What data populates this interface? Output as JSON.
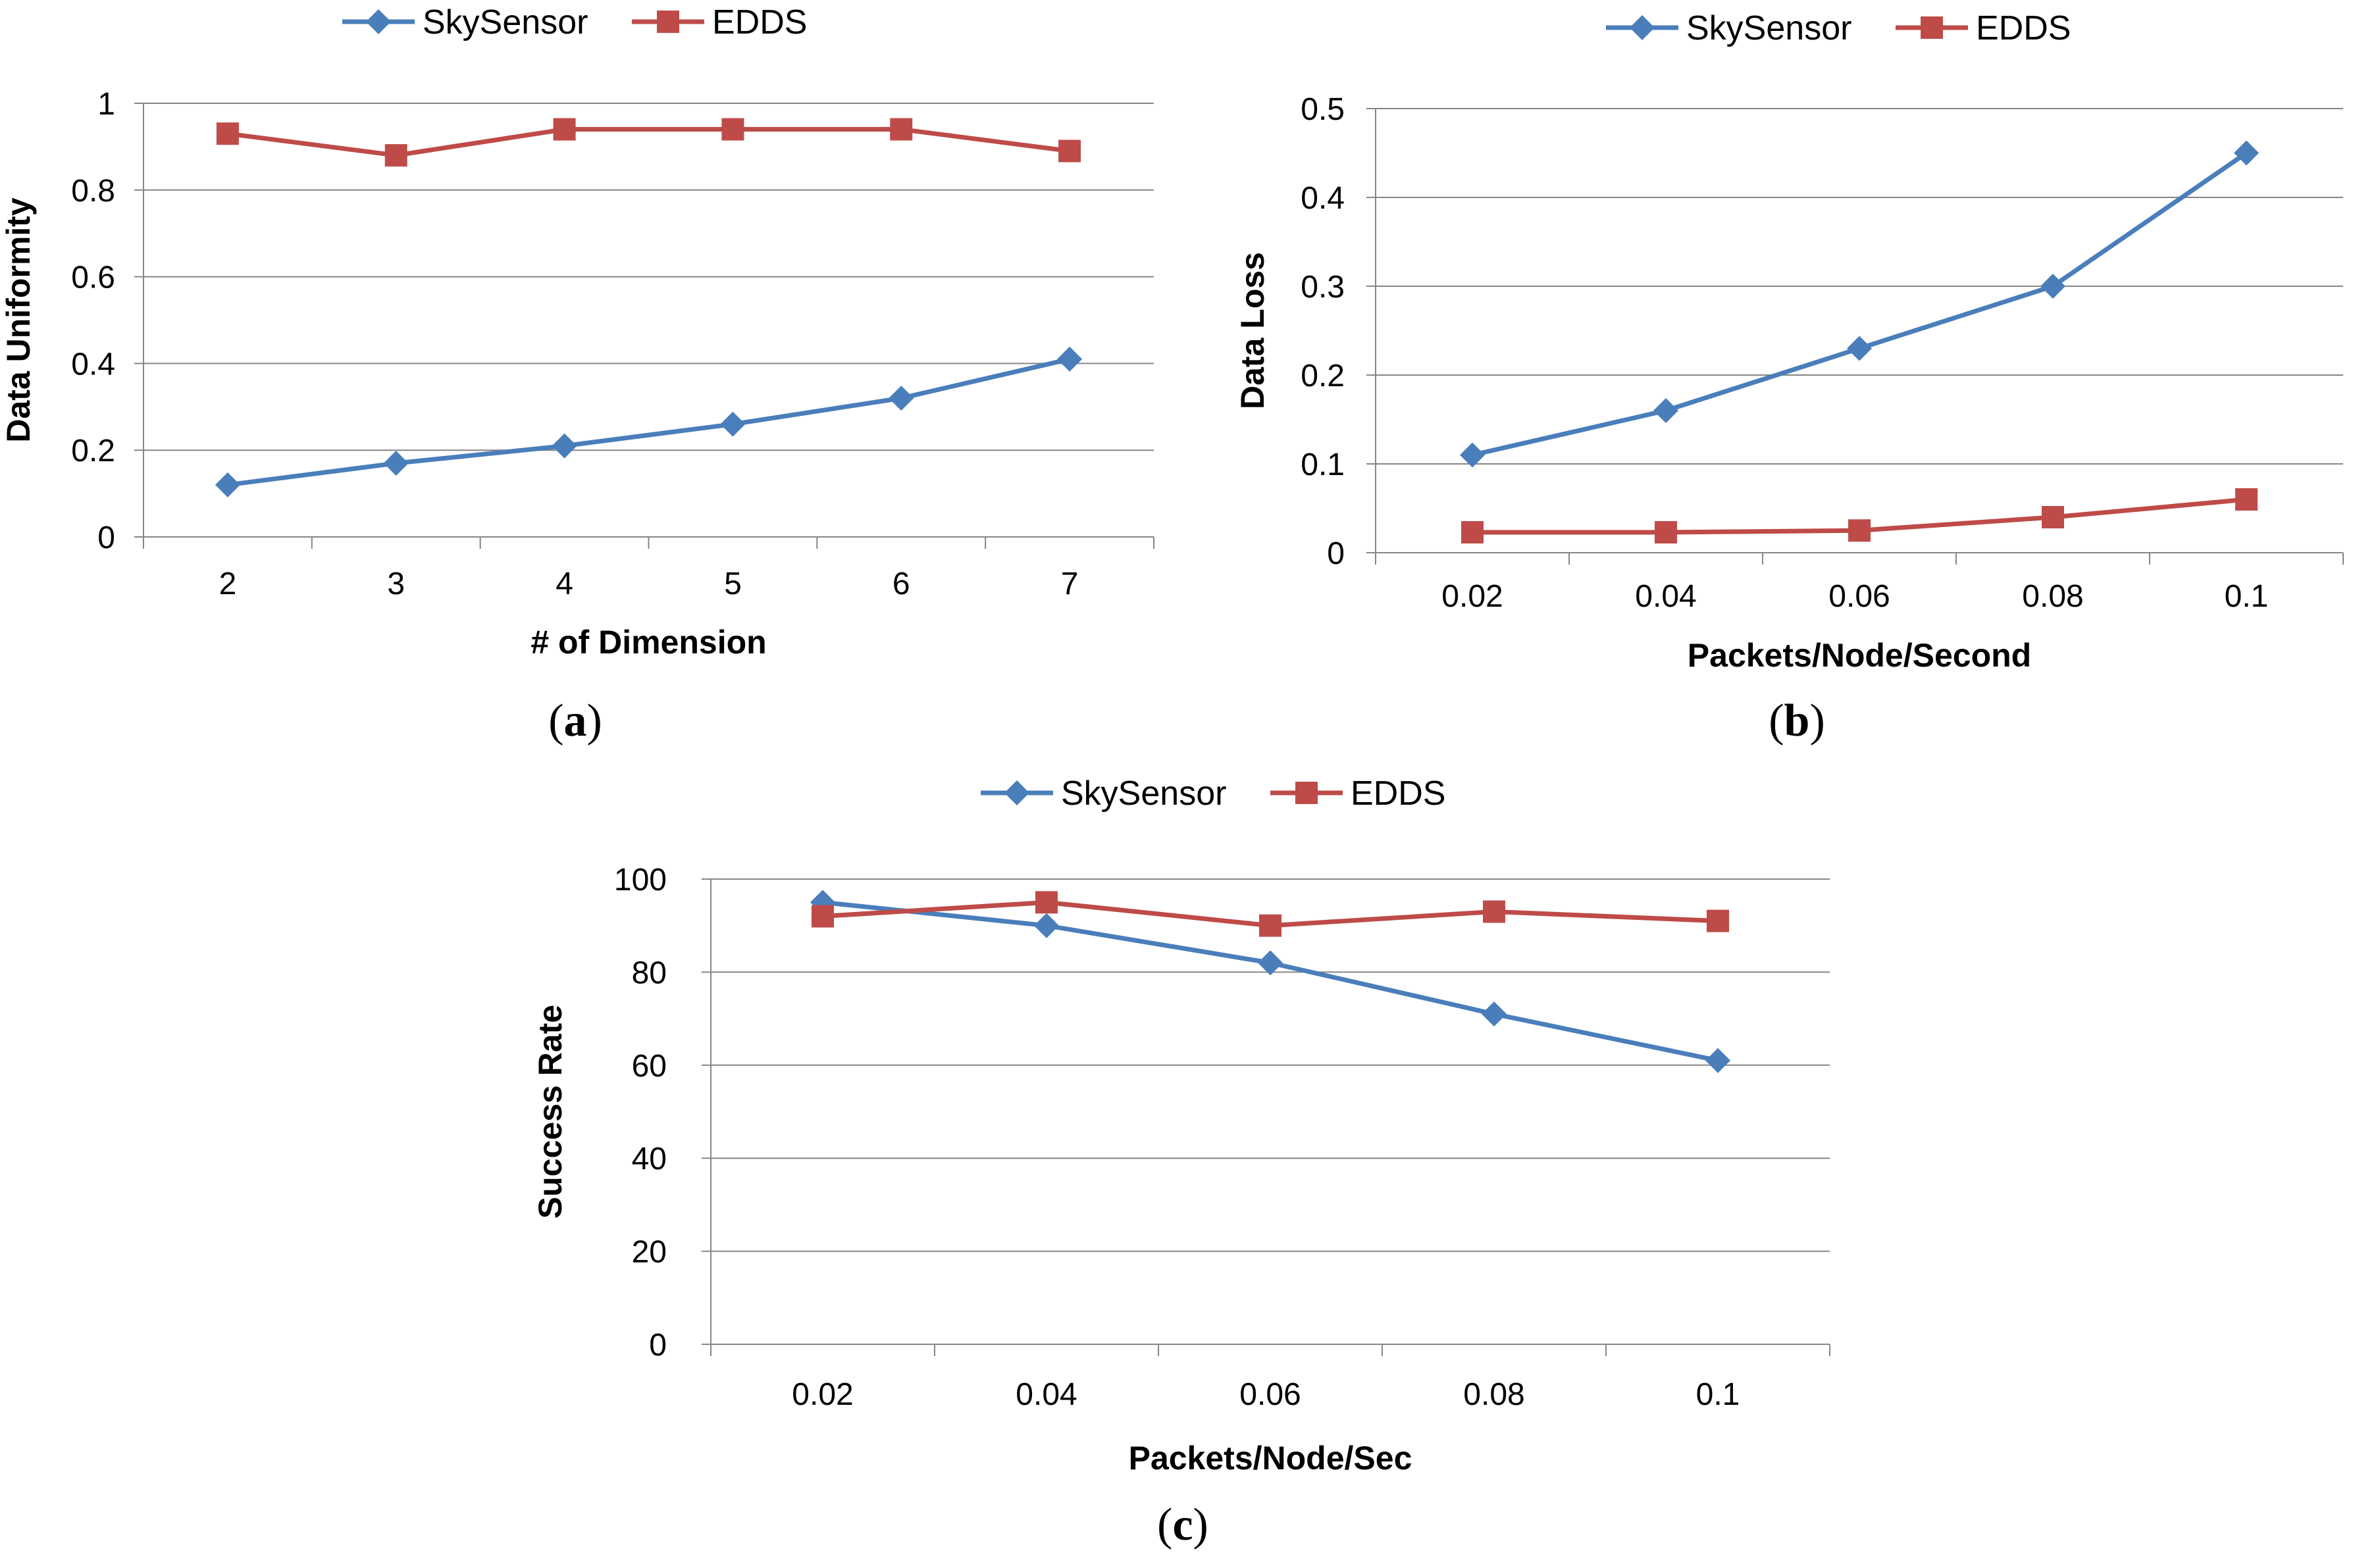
{
  "colors": {
    "skysensor": "#4a7ebb",
    "edds": "#be4b48",
    "grid": "#868686",
    "axis": "#868686"
  },
  "chart_data": [
    {
      "type": "line",
      "panel_label": "a",
      "title": "",
      "xlabel": "# of Dimension",
      "ylabel": "Data Uniformity",
      "categories": [
        "2",
        "3",
        "4",
        "5",
        "6",
        "7"
      ],
      "yticks": [
        "0",
        "0.2",
        "0.4",
        "0.6",
        "0.8",
        "1"
      ],
      "ylim": [
        0,
        1
      ],
      "grid": true,
      "legend_position": "top",
      "series": [
        {
          "name": "SkySensor",
          "marker": "diamond",
          "values": [
            0.12,
            0.17,
            0.21,
            0.26,
            0.32,
            0.41
          ]
        },
        {
          "name": "EDDS",
          "marker": "square",
          "values": [
            0.93,
            0.88,
            0.94,
            0.94,
            0.94,
            0.89
          ]
        }
      ]
    },
    {
      "type": "line",
      "panel_label": "b",
      "title": "",
      "xlabel": "Packets/Node/Second",
      "ylabel": "Data Loss",
      "categories": [
        "0.02",
        "0.04",
        "0.06",
        "0.08",
        "0.1"
      ],
      "yticks": [
        "0",
        "0.1",
        "0.2",
        "0.3",
        "0.4",
        "0.5"
      ],
      "ylim": [
        0,
        0.5
      ],
      "grid": true,
      "legend_position": "top",
      "series": [
        {
          "name": "SkySensor",
          "marker": "diamond",
          "values": [
            0.11,
            0.16,
            0.23,
            0.3,
            0.45
          ]
        },
        {
          "name": "EDDS",
          "marker": "square",
          "values": [
            0.023,
            0.023,
            0.025,
            0.04,
            0.06
          ]
        }
      ]
    },
    {
      "type": "line",
      "panel_label": "c",
      "title": "",
      "xlabel": "Packets/Node/Sec",
      "ylabel": "Success Rate",
      "categories": [
        "0.02",
        "0.04",
        "0.06",
        "0.08",
        "0.1"
      ],
      "yticks": [
        "0",
        "20",
        "40",
        "60",
        "80",
        "100"
      ],
      "ylim": [
        0,
        100
      ],
      "grid": true,
      "legend_position": "top",
      "series": [
        {
          "name": "SkySensor",
          "marker": "diamond",
          "values": [
            95,
            90,
            82,
            71,
            61
          ]
        },
        {
          "name": "EDDS",
          "marker": "square",
          "values": [
            92,
            95,
            90,
            93,
            91
          ]
        }
      ]
    }
  ]
}
